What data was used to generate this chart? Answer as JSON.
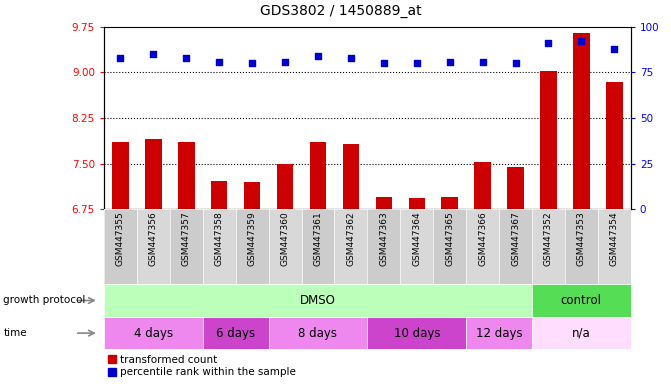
{
  "title": "GDS3802 / 1450889_at",
  "samples": [
    "GSM447355",
    "GSM447356",
    "GSM447357",
    "GSM447358",
    "GSM447359",
    "GSM447360",
    "GSM447361",
    "GSM447362",
    "GSM447363",
    "GSM447364",
    "GSM447365",
    "GSM447366",
    "GSM447367",
    "GSM447352",
    "GSM447353",
    "GSM447354"
  ],
  "bar_values": [
    7.85,
    7.9,
    7.85,
    7.22,
    7.2,
    7.5,
    7.85,
    7.82,
    6.95,
    6.93,
    6.95,
    7.52,
    7.45,
    9.02,
    9.65,
    8.85
  ],
  "percentile_values": [
    83,
    85,
    83,
    81,
    80,
    81,
    84,
    83,
    80,
    80,
    81,
    81,
    80,
    91,
    92,
    88
  ],
  "ylim_left": [
    6.75,
    9.75
  ],
  "ylim_right": [
    0,
    100
  ],
  "yticks_left": [
    6.75,
    7.5,
    8.25,
    9.0,
    9.75
  ],
  "yticks_right": [
    0,
    25,
    50,
    75,
    100
  ],
  "bar_color": "#CC0000",
  "dot_color": "#0000CC",
  "hline_values": [
    7.5,
    8.25,
    9.0
  ],
  "growth_protocol_label": "growth protocol",
  "time_label": "time",
  "protocol_groups": [
    {
      "label": "DMSO",
      "start": 0,
      "end": 13,
      "color": "#BBFFBB"
    },
    {
      "label": "control",
      "start": 13,
      "end": 16,
      "color": "#55DD55"
    }
  ],
  "time_groups": [
    {
      "label": "4 days",
      "start": 0,
      "end": 3,
      "color": "#EE88EE"
    },
    {
      "label": "6 days",
      "start": 3,
      "end": 5,
      "color": "#CC44CC"
    },
    {
      "label": "8 days",
      "start": 5,
      "end": 8,
      "color": "#EE88EE"
    },
    {
      "label": "10 days",
      "start": 8,
      "end": 11,
      "color": "#CC44CC"
    },
    {
      "label": "12 days",
      "start": 11,
      "end": 13,
      "color": "#EE88EE"
    },
    {
      "label": "n/a",
      "start": 13,
      "end": 16,
      "color": "#FFDDFF"
    }
  ],
  "legend_items": [
    {
      "label": "transformed count",
      "color": "#CC0000",
      "marker": "s"
    },
    {
      "label": "percentile rank within the sample",
      "color": "#0000CC",
      "marker": "s"
    }
  ],
  "background_color": "#FFFFFF",
  "title_fontsize": 10,
  "tick_fontsize": 7.5,
  "label_fontsize": 6.5
}
